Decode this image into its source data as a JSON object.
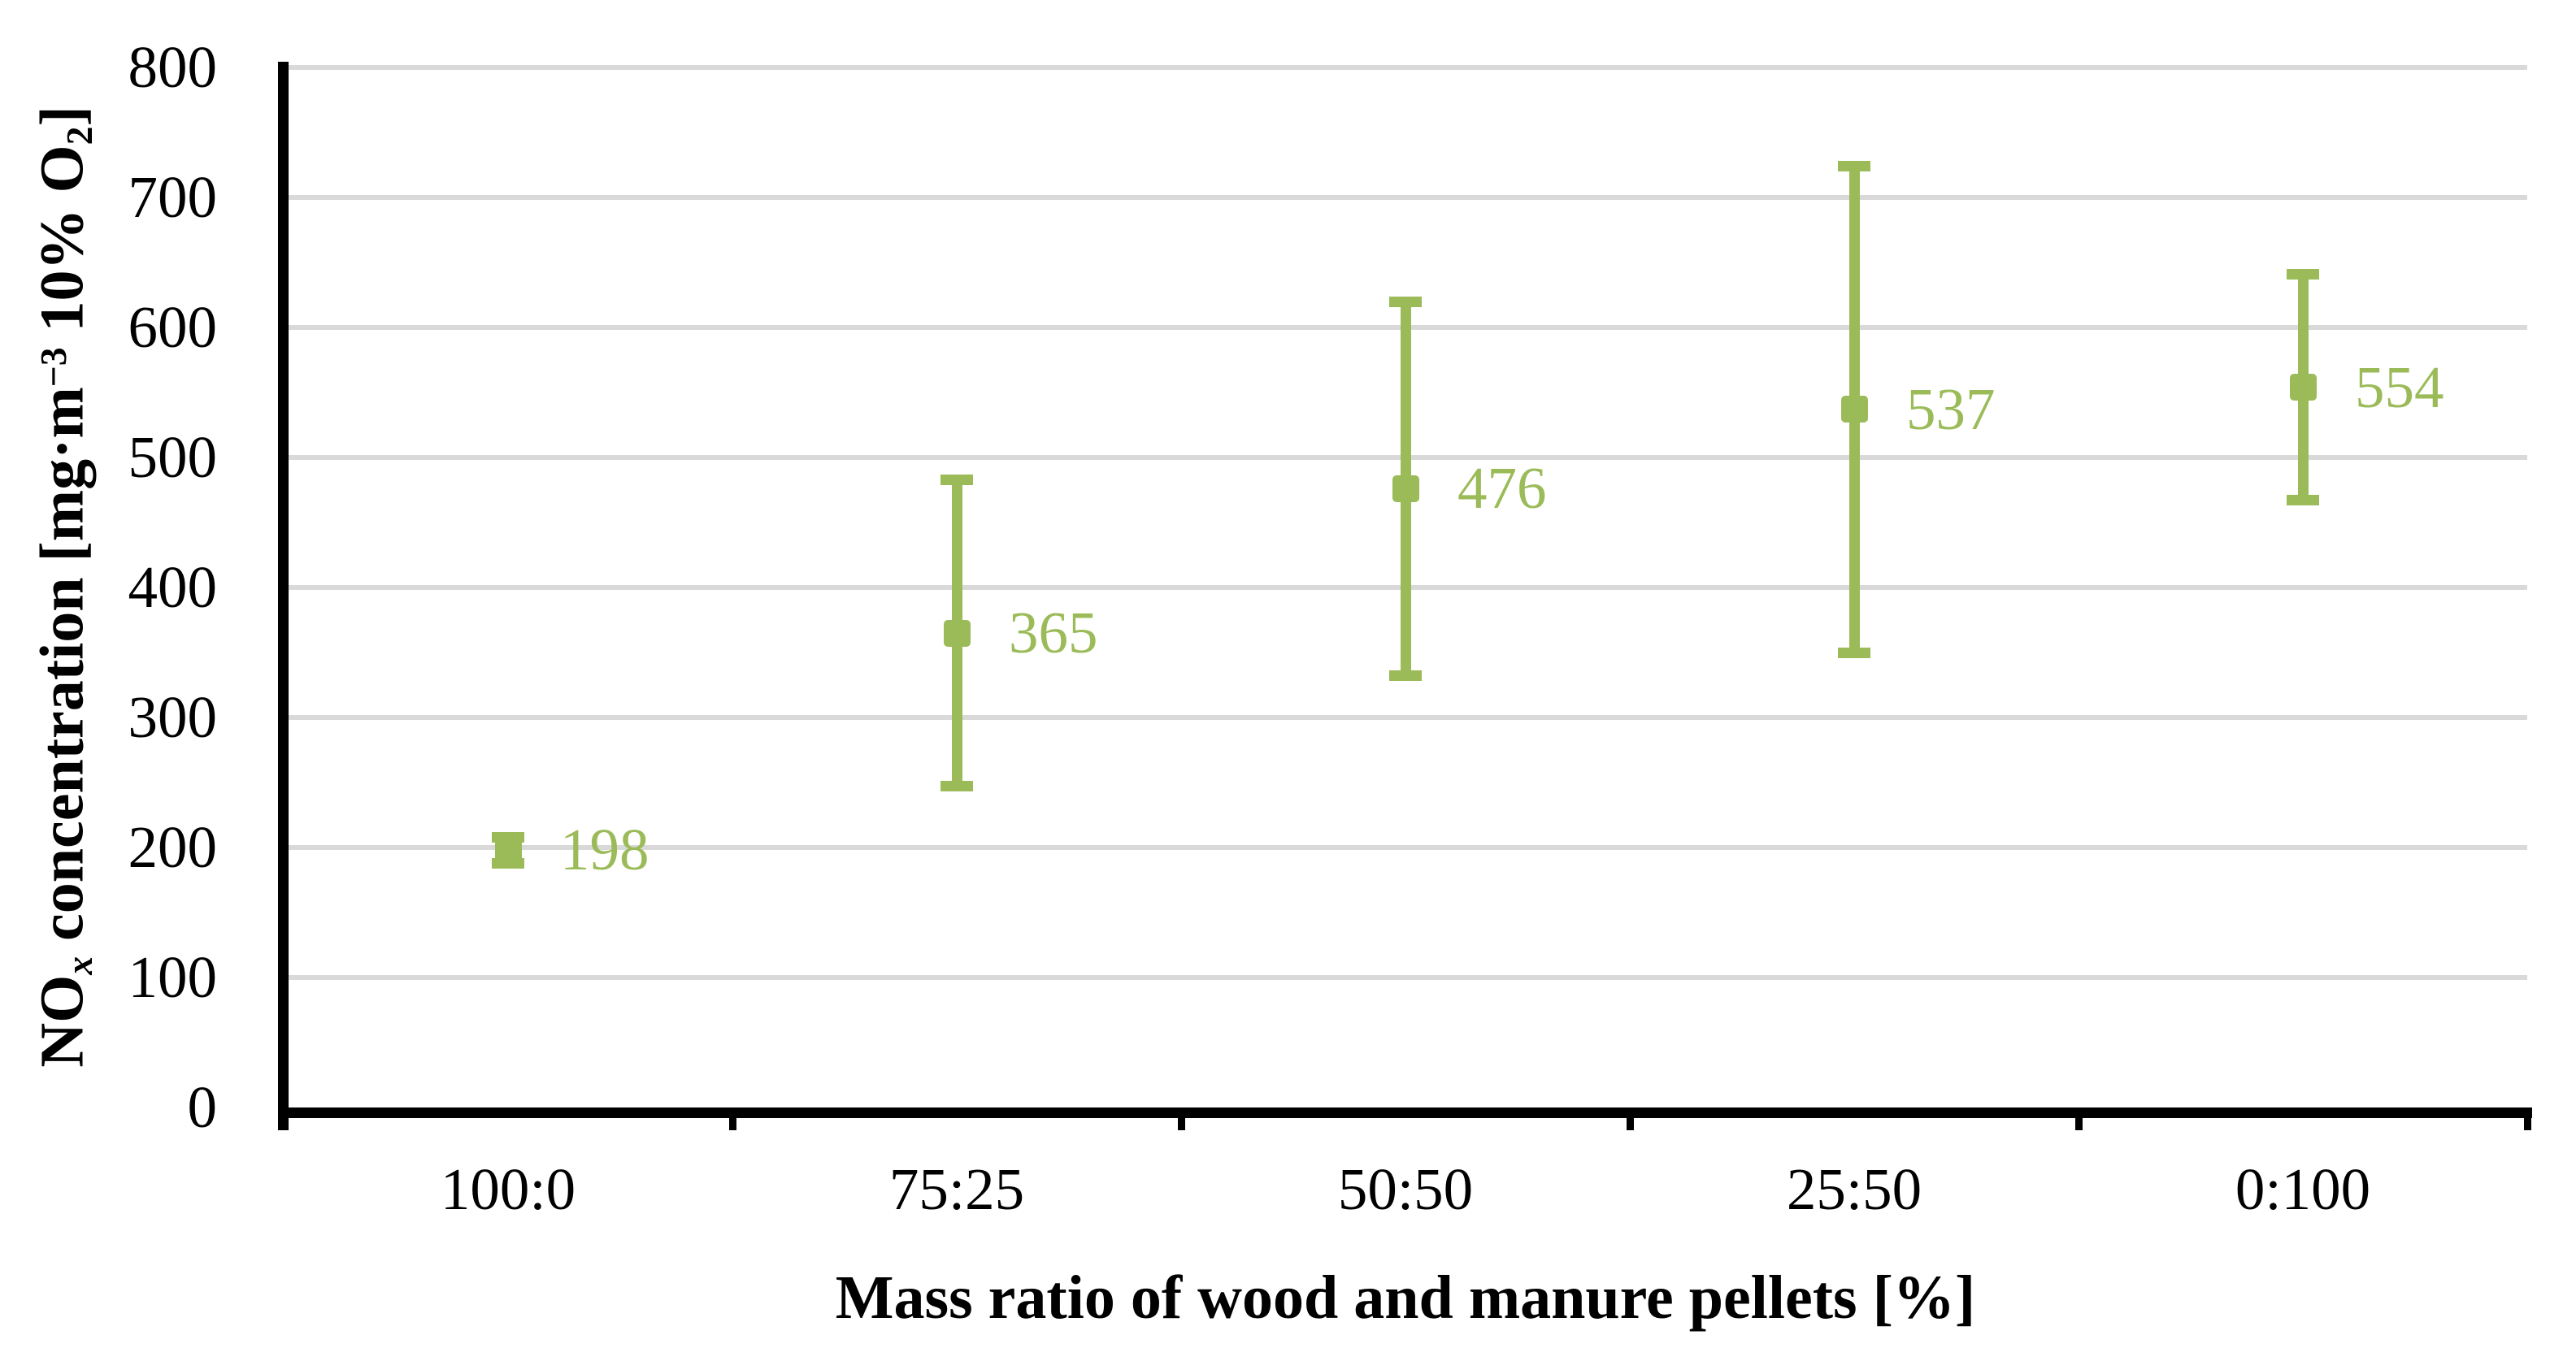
{
  "chart_data": {
    "type": "scatter",
    "title": "",
    "categories": [
      "100:0",
      "75:25",
      "50:50",
      "25:50",
      "0:100"
    ],
    "points": [
      {
        "category": "100:0",
        "value": 198,
        "label": "198",
        "error_plus": 10,
        "error_minus": 10
      },
      {
        "category": "75:25",
        "value": 365,
        "label": "365",
        "error_plus": 118,
        "error_minus": 118
      },
      {
        "category": "50:50",
        "value": 476,
        "label": "476",
        "error_plus": 144,
        "error_minus": 144
      },
      {
        "category": "25:50",
        "value": 537,
        "label": "537",
        "error_plus": 187,
        "error_minus": 187
      },
      {
        "category": "0:100",
        "value": 554,
        "label": "554",
        "error_plus": 87,
        "error_minus": 87
      }
    ],
    "x_axis": {
      "title": "Mass ratio of wood and manure pellets [%]",
      "tick_labels": [
        "100:0",
        "75:25",
        "50:50",
        "25:50",
        "0:100"
      ]
    },
    "y_axis": {
      "min": 0,
      "max": 800,
      "tick_step": 100,
      "tick_labels": [
        "0",
        "100",
        "200",
        "300",
        "400",
        "500",
        "600",
        "700",
        "800"
      ],
      "title_parts": [
        {
          "text": "NO"
        },
        {
          "text": "x",
          "script": "sub",
          "italic": true
        },
        {
          "text": " concentration [mg·m"
        },
        {
          "text": "−3",
          "script": "sup"
        },
        {
          "text": " 10% O"
        },
        {
          "text": "2",
          "script": "sub"
        },
        {
          "text": "]"
        }
      ]
    },
    "grid": true,
    "legend": null,
    "colors": {
      "series": "#9BBB59",
      "gridline": "#D9D9D9",
      "axis": "#000000",
      "background": "#FFFFFF"
    }
  }
}
